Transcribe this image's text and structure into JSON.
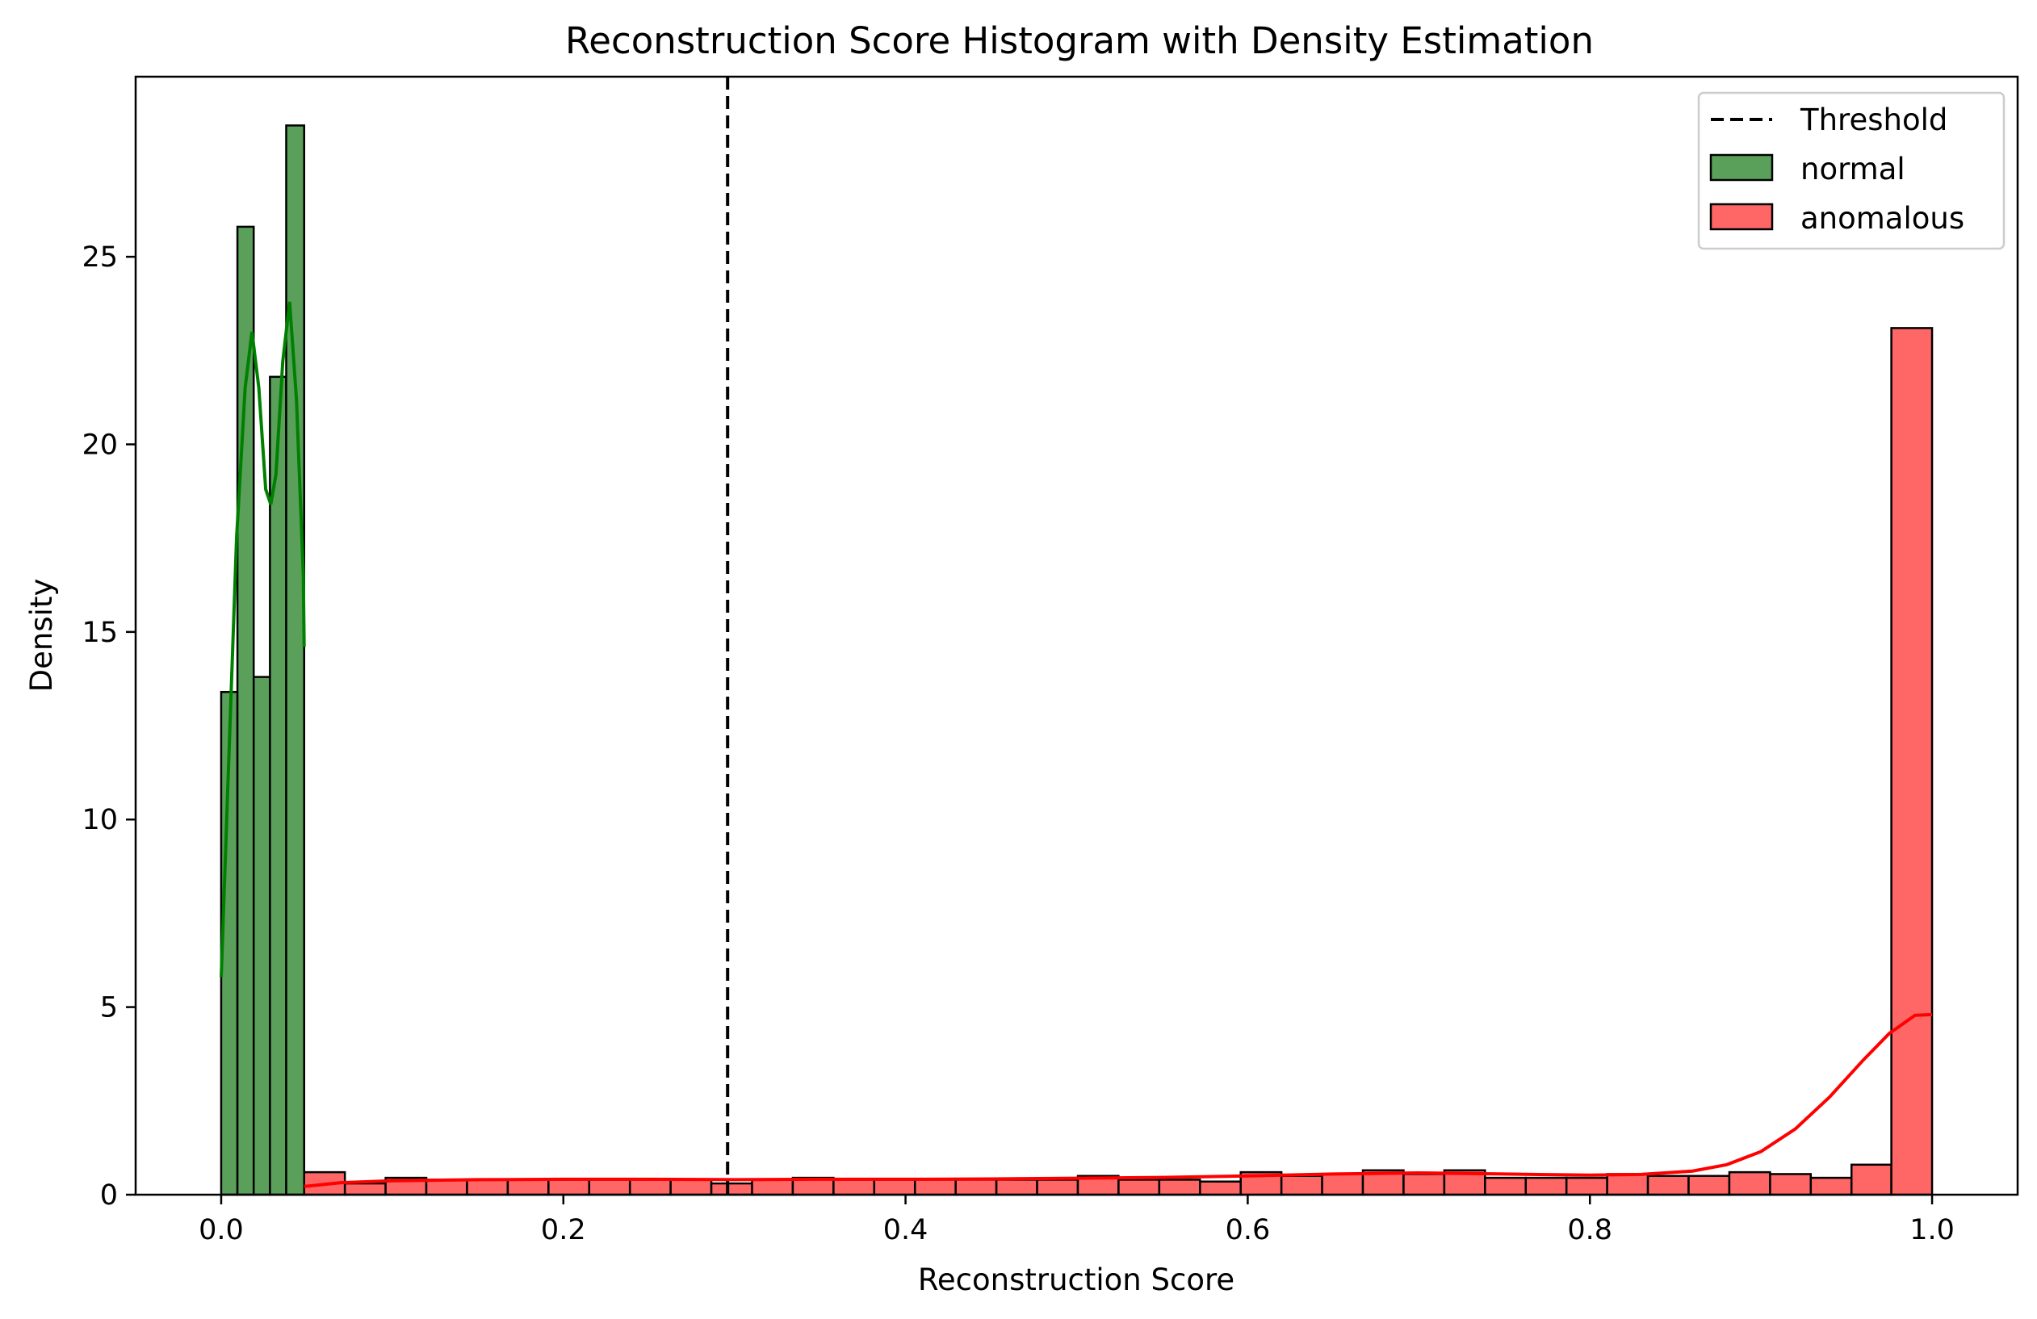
{
  "chart_data": {
    "type": "histogram",
    "title": "Reconstruction Score Histogram with Density Estimation",
    "xlabel": "Reconstruction Score",
    "ylabel": "Density",
    "xlim": [
      -0.05,
      1.05
    ],
    "ylim": [
      0,
      29.8
    ],
    "xticks": [
      0.0,
      0.2,
      0.4,
      0.6,
      0.8,
      1.0
    ],
    "xtick_labels": [
      "0.0",
      "0.2",
      "0.4",
      "0.6",
      "0.8",
      "1.0"
    ],
    "yticks": [
      0,
      5,
      10,
      15,
      20,
      25
    ],
    "ytick_labels": [
      "0",
      "5",
      "10",
      "15",
      "20",
      "25"
    ],
    "grid": false,
    "legend_position": "top-right",
    "threshold": {
      "name": "Threshold",
      "x": 0.296,
      "style": "dashed",
      "color": "#000000"
    },
    "series": [
      {
        "name": "normal",
        "color": "#5aa05a",
        "kde_color": "#008000",
        "bins": [
          {
            "x0": 0.0,
            "x1": 0.0095,
            "value": 13.4
          },
          {
            "x0": 0.0095,
            "x1": 0.019,
            "value": 25.8
          },
          {
            "x0": 0.019,
            "x1": 0.0285,
            "value": 13.8
          },
          {
            "x0": 0.0285,
            "x1": 0.038,
            "value": 21.8
          },
          {
            "x0": 0.038,
            "x1": 0.0485,
            "value": 28.5
          }
        ],
        "kde": [
          [
            0.0,
            5.8
          ],
          [
            0.004,
            11.0
          ],
          [
            0.009,
            17.5
          ],
          [
            0.014,
            21.5
          ],
          [
            0.018,
            23.0
          ],
          [
            0.022,
            21.5
          ],
          [
            0.026,
            18.8
          ],
          [
            0.029,
            18.4
          ],
          [
            0.032,
            19.2
          ],
          [
            0.036,
            22.2
          ],
          [
            0.04,
            23.8
          ],
          [
            0.044,
            21.2
          ],
          [
            0.048,
            16.5
          ],
          [
            0.0485,
            14.6
          ]
        ]
      },
      {
        "name": "anomalous",
        "color": "#ff6666",
        "kde_color": "#ff0000",
        "bins": [
          {
            "x0": 0.0485,
            "x1": 0.0723,
            "value": 0.6
          },
          {
            "x0": 0.0723,
            "x1": 0.0961,
            "value": 0.3
          },
          {
            "x0": 0.0961,
            "x1": 0.1199,
            "value": 0.45
          },
          {
            "x0": 0.1199,
            "x1": 0.1437,
            "value": 0.4
          },
          {
            "x0": 0.1437,
            "x1": 0.1675,
            "value": 0.4
          },
          {
            "x0": 0.1675,
            "x1": 0.1913,
            "value": 0.4
          },
          {
            "x0": 0.1913,
            "x1": 0.2151,
            "value": 0.4
          },
          {
            "x0": 0.2151,
            "x1": 0.2389,
            "value": 0.4
          },
          {
            "x0": 0.2389,
            "x1": 0.2627,
            "value": 0.4
          },
          {
            "x0": 0.2627,
            "x1": 0.2865,
            "value": 0.4
          },
          {
            "x0": 0.2865,
            "x1": 0.3103,
            "value": 0.3
          },
          {
            "x0": 0.3103,
            "x1": 0.3341,
            "value": 0.4
          },
          {
            "x0": 0.3341,
            "x1": 0.3579,
            "value": 0.45
          },
          {
            "x0": 0.3579,
            "x1": 0.3817,
            "value": 0.4
          },
          {
            "x0": 0.3817,
            "x1": 0.4055,
            "value": 0.4
          },
          {
            "x0": 0.4055,
            "x1": 0.4293,
            "value": 0.4
          },
          {
            "x0": 0.4293,
            "x1": 0.4531,
            "value": 0.4
          },
          {
            "x0": 0.4531,
            "x1": 0.4769,
            "value": 0.4
          },
          {
            "x0": 0.4769,
            "x1": 0.5007,
            "value": 0.4
          },
          {
            "x0": 0.5007,
            "x1": 0.5245,
            "value": 0.5
          },
          {
            "x0": 0.5245,
            "x1": 0.5483,
            "value": 0.4
          },
          {
            "x0": 0.5483,
            "x1": 0.5721,
            "value": 0.4
          },
          {
            "x0": 0.5721,
            "x1": 0.5959,
            "value": 0.35
          },
          {
            "x0": 0.5959,
            "x1": 0.6197,
            "value": 0.6
          },
          {
            "x0": 0.6197,
            "x1": 0.6435,
            "value": 0.5
          },
          {
            "x0": 0.6435,
            "x1": 0.6673,
            "value": 0.55
          },
          {
            "x0": 0.6673,
            "x1": 0.6911,
            "value": 0.65
          },
          {
            "x0": 0.6911,
            "x1": 0.7149,
            "value": 0.55
          },
          {
            "x0": 0.7149,
            "x1": 0.7387,
            "value": 0.65
          },
          {
            "x0": 0.7387,
            "x1": 0.7625,
            "value": 0.45
          },
          {
            "x0": 0.7625,
            "x1": 0.7863,
            "value": 0.45
          },
          {
            "x0": 0.7863,
            "x1": 0.8101,
            "value": 0.45
          },
          {
            "x0": 0.8101,
            "x1": 0.8339,
            "value": 0.55
          },
          {
            "x0": 0.8339,
            "x1": 0.8577,
            "value": 0.5
          },
          {
            "x0": 0.8577,
            "x1": 0.8815,
            "value": 0.5
          },
          {
            "x0": 0.8815,
            "x1": 0.9053,
            "value": 0.6
          },
          {
            "x0": 0.9053,
            "x1": 0.9291,
            "value": 0.55
          },
          {
            "x0": 0.9291,
            "x1": 0.9529,
            "value": 0.45
          },
          {
            "x0": 0.9529,
            "x1": 0.9762,
            "value": 0.8
          },
          {
            "x0": 0.9762,
            "x1": 1.0,
            "value": 23.1
          }
        ],
        "kde": [
          [
            0.0485,
            0.22
          ],
          [
            0.07,
            0.32
          ],
          [
            0.1,
            0.37
          ],
          [
            0.15,
            0.4
          ],
          [
            0.2,
            0.41
          ],
          [
            0.25,
            0.41
          ],
          [
            0.3,
            0.4
          ],
          [
            0.35,
            0.41
          ],
          [
            0.4,
            0.41
          ],
          [
            0.45,
            0.42
          ],
          [
            0.5,
            0.44
          ],
          [
            0.55,
            0.46
          ],
          [
            0.6,
            0.5
          ],
          [
            0.65,
            0.55
          ],
          [
            0.7,
            0.58
          ],
          [
            0.75,
            0.55
          ],
          [
            0.8,
            0.52
          ],
          [
            0.83,
            0.54
          ],
          [
            0.86,
            0.63
          ],
          [
            0.88,
            0.8
          ],
          [
            0.9,
            1.15
          ],
          [
            0.92,
            1.75
          ],
          [
            0.94,
            2.6
          ],
          [
            0.96,
            3.6
          ],
          [
            0.975,
            4.3
          ],
          [
            0.99,
            4.78
          ],
          [
            1.0,
            4.8
          ]
        ]
      }
    ]
  }
}
